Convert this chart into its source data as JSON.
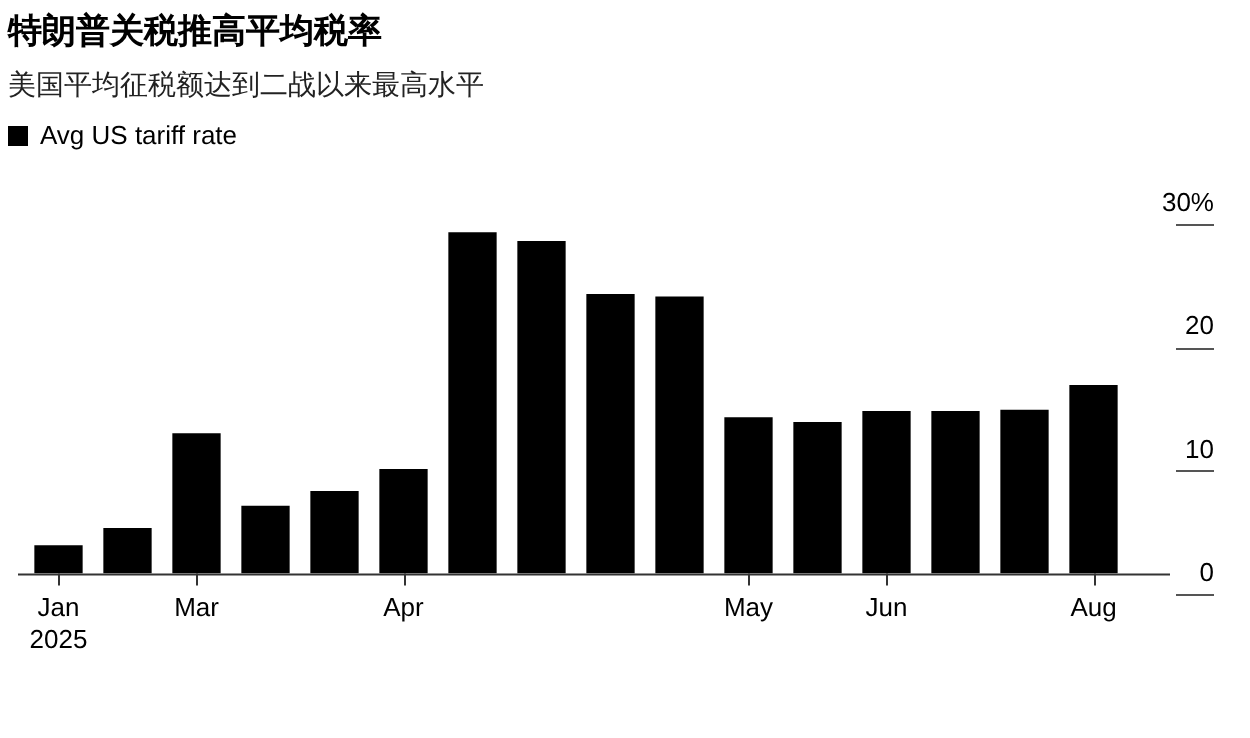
{
  "chart_data": {
    "type": "bar",
    "title": "特朗普关税推高平均税率",
    "subtitle": "美国平均征税额达到二战以来最高水平",
    "categories": [
      "Jan\n2025",
      null,
      "Mar",
      null,
      null,
      "Apr",
      null,
      null,
      null,
      null,
      "May",
      null,
      "Jun",
      null,
      null,
      "Aug"
    ],
    "series": [
      {
        "name": "Avg US tariff rate",
        "color": "#000000",
        "values": [
          2.3,
          3.7,
          11.4,
          5.5,
          6.7,
          8.5,
          27.7,
          27.0,
          22.7,
          22.5,
          12.7,
          12.3,
          13.2,
          13.2,
          13.3,
          15.3
        ]
      }
    ],
    "ylim": [
      0,
      30
    ],
    "yticks": [
      0,
      10,
      20,
      {
        "value": 30,
        "label": "30%"
      }
    ],
    "grid": false,
    "legend": "top left"
  }
}
